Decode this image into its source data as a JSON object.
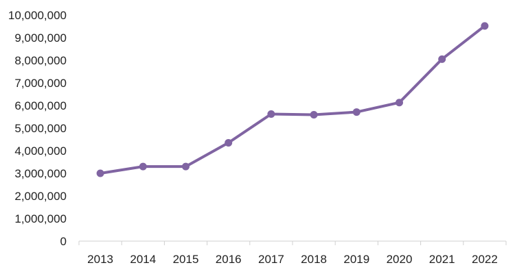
{
  "chart_data": {
    "type": "line",
    "title": "",
    "xlabel": "",
    "ylabel": "",
    "categories": [
      "2013",
      "2014",
      "2015",
      "2016",
      "2017",
      "2018",
      "2019",
      "2020",
      "2021",
      "2022"
    ],
    "series": [
      {
        "values": [
          3000000,
          3300000,
          3300000,
          4350000,
          5620000,
          5590000,
          5710000,
          6130000,
          8050000,
          9520000
        ],
        "color": "#8064a2"
      }
    ],
    "ylim": [
      0,
      10000000
    ],
    "yticks": [
      0,
      1000000,
      2000000,
      3000000,
      4000000,
      5000000,
      6000000,
      7000000,
      8000000,
      9000000,
      10000000
    ],
    "ytick_labels": [
      "0",
      "1,000,000",
      "2,000,000",
      "3,000,000",
      "4,000,000",
      "5,000,000",
      "6,000,000",
      "7,000,000",
      "8,000,000",
      "9,000,000",
      "10,000,000"
    ],
    "grid": false,
    "legend": "none",
    "axis_color": "#d0d0d0",
    "text_color": "#222222"
  }
}
